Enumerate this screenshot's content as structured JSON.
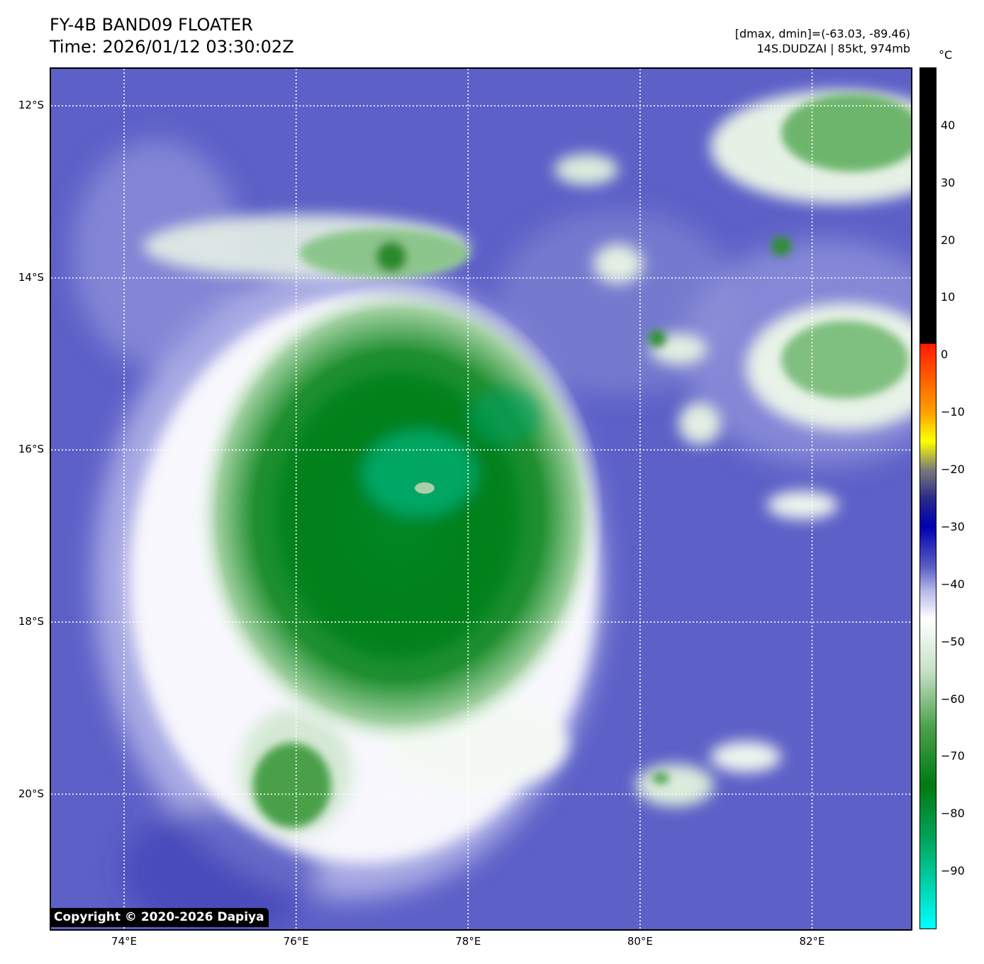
{
  "header": {
    "title_line1": "FY-4B BAND09 FLOATER",
    "title_line2": "Time: 2026/01/12 03:30:02Z",
    "dmax_dmin": "[dmax, dmin]=(-63.03, -89.46)",
    "storm": "14S.DUDZAI | 85kt, 974mb"
  },
  "map": {
    "lon_range": [
      73.15,
      83.15
    ],
    "lat_range": [
      -11.57,
      -21.57
    ],
    "lat_labels": [
      {
        "lat": -12,
        "text": "12°S"
      },
      {
        "lat": -14,
        "text": "14°S"
      },
      {
        "lat": -16,
        "text": "16°S"
      },
      {
        "lat": -18,
        "text": "18°S"
      },
      {
        "lat": -20,
        "text": "20°S"
      }
    ],
    "lon_labels": [
      {
        "lon": 74,
        "text": "74°E"
      },
      {
        "lon": 76,
        "text": "76°E"
      },
      {
        "lon": 78,
        "text": "78°E"
      },
      {
        "lon": 80,
        "text": "80°E"
      },
      {
        "lon": 82,
        "text": "82°E"
      }
    ],
    "gridlines": "dotted-white",
    "eye_center": {
      "lon": 77.55,
      "lat": -16.45
    }
  },
  "colorbar": {
    "unit": "°C",
    "range": [
      -100,
      50
    ],
    "ticks": [
      {
        "v": 40,
        "text": "40"
      },
      {
        "v": 30,
        "text": "30"
      },
      {
        "v": 20,
        "text": "20"
      },
      {
        "v": 10,
        "text": "10"
      },
      {
        "v": 0,
        "text": "0"
      },
      {
        "v": -10,
        "text": "−10"
      },
      {
        "v": -20,
        "text": "−20"
      },
      {
        "v": -30,
        "text": "−30"
      },
      {
        "v": -40,
        "text": "−40"
      },
      {
        "v": -50,
        "text": "−50"
      },
      {
        "v": -60,
        "text": "−60"
      },
      {
        "v": -70,
        "text": "−70"
      },
      {
        "v": -80,
        "text": "−80"
      },
      {
        "v": -90,
        "text": "−90"
      }
    ],
    "stops": [
      {
        "v": 50,
        "color": "#000000"
      },
      {
        "v": 2,
        "color": "#000000"
      },
      {
        "v": 1.9,
        "color": "#ff1a00"
      },
      {
        "v": -10,
        "color": "#ffa000"
      },
      {
        "v": -15,
        "color": "#ffff00"
      },
      {
        "v": -20,
        "color": "#7a7a7a"
      },
      {
        "v": -25,
        "color": "#2a2a8a"
      },
      {
        "v": -30,
        "color": "#0000b0"
      },
      {
        "v": -37,
        "color": "#5c5fc6"
      },
      {
        "v": -41,
        "color": "#b4b6e8"
      },
      {
        "v": -46,
        "color": "#ffffff"
      },
      {
        "v": -55,
        "color": "#c8e2c8"
      },
      {
        "v": -65,
        "color": "#4aa04a"
      },
      {
        "v": -75,
        "color": "#007a10"
      },
      {
        "v": -85,
        "color": "#00a860"
      },
      {
        "v": -100,
        "color": "#00ffff"
      }
    ]
  },
  "copyright": "Copyright © 2020-2026 Dapiya"
}
